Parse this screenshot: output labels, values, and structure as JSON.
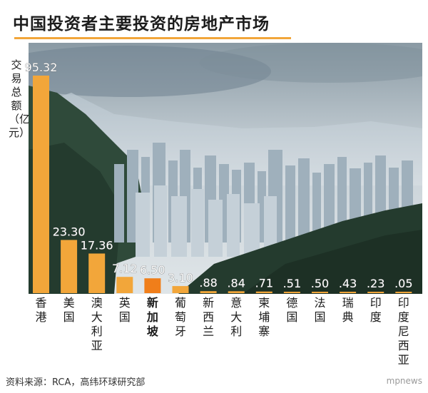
{
  "title": "中国投资者主要投资的房地产市场",
  "source": "资料来源：RCA，高纬环球研究部",
  "watermark": "mpnews",
  "chart_data": {
    "type": "bar",
    "ylabel": "交易总额（亿元）",
    "categories": [
      "香港",
      "美国",
      "澳大利亚",
      "英国",
      "新加坡",
      "葡萄牙",
      "新西兰",
      "意大利",
      "柬埔寨",
      "德国",
      "法国",
      "瑞典",
      "印度",
      "印度尼西亚"
    ],
    "values": [
      95.32,
      23.3,
      17.36,
      7.12,
      6.5,
      3.1,
      0.88,
      0.84,
      0.71,
      0.51,
      0.5,
      0.43,
      0.23,
      0.05
    ],
    "value_labels": [
      "95.32",
      "23.30",
      "17.36",
      "7.12",
      "6.50",
      "3.10",
      ".88",
      ".84",
      ".71",
      ".51",
      ".50",
      ".43",
      ".23",
      ".05"
    ],
    "highlight": "新加坡",
    "colors": {
      "bar": "#f2a63a",
      "highlight_bar": "#f07e1a",
      "title_rule": "#f2a63a"
    }
  }
}
